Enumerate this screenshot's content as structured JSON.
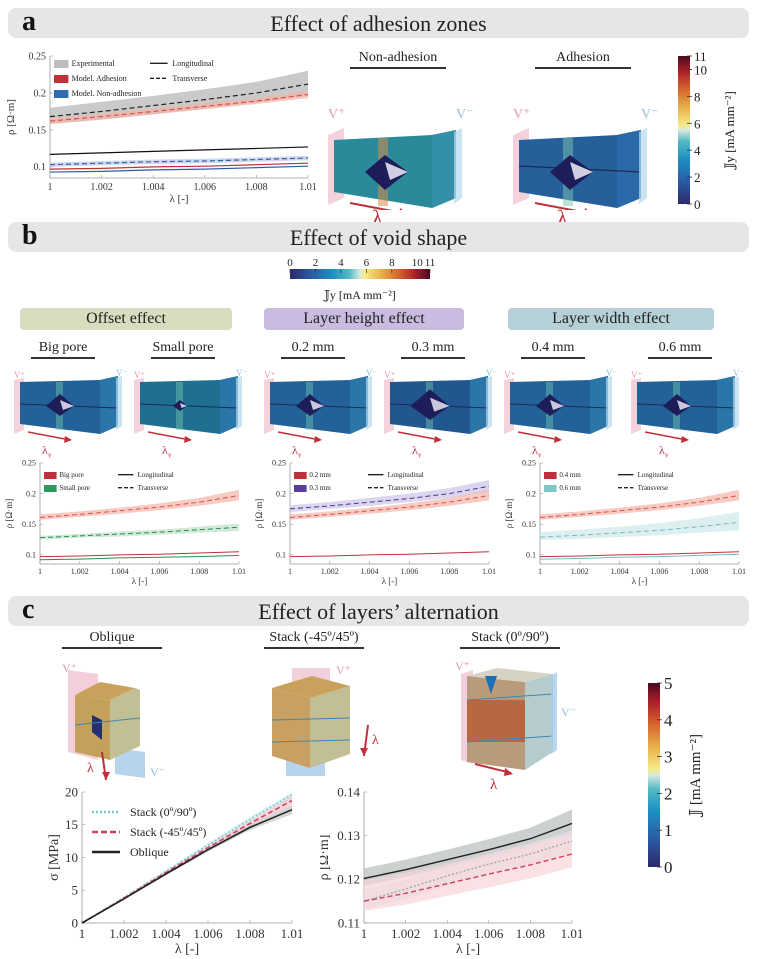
{
  "panels": {
    "a": {
      "letter": "a",
      "title": "Effect of adhesion zones",
      "renders": [
        {
          "label": "Non-adhesion",
          "v_plus": "V⁺",
          "v_minus": "V⁻",
          "arrow": "λ",
          "arrow_sub": "y"
        },
        {
          "label": "Adhesion",
          "v_plus": "V⁺",
          "v_minus": "V⁻",
          "arrow": "λ",
          "arrow_sub": "y"
        }
      ],
      "colorbar": {
        "label": "𝕁y [mA mm⁻²]",
        "ticks": [
          "0",
          "2",
          "4",
          "6",
          "8",
          "10",
          "11"
        ]
      }
    },
    "b": {
      "letter": "b",
      "title": "Effect of void shape",
      "colorbar": {
        "label": "𝕁y [mA mm⁻²]",
        "ticks": [
          "0",
          "2",
          "4",
          "6",
          "8",
          "10",
          "11"
        ]
      },
      "groups": [
        {
          "title": "Offset effect",
          "color": "#d7ddbf",
          "renders": [
            {
              "label": "Big pore"
            },
            {
              "label": "Small pore"
            }
          ]
        },
        {
          "title": "Layer height effect",
          "color": "#c9bce0",
          "renders": [
            {
              "label": "0.2 mm"
            },
            {
              "label": "0.3 mm"
            }
          ]
        },
        {
          "title": "Layer width effect",
          "color": "#b5d0d6",
          "renders": [
            {
              "label": "0.4 mm"
            },
            {
              "label": "0.6 mm"
            }
          ]
        }
      ],
      "v_plus": "V⁺",
      "v_minus": "V⁻",
      "arrow": "λ",
      "arrow_sub": "y"
    },
    "c": {
      "letter": "c",
      "title": "Effect of layers’ alternation",
      "renders": [
        {
          "label": "Oblique"
        },
        {
          "label": "Stack (-45º/45º)"
        },
        {
          "label": "Stack (0º/90º)"
        }
      ],
      "v_plus": "V⁺",
      "v_minus": "V⁻",
      "arrow": "λ",
      "colorbar": {
        "label": "𝕁 [mA mm⁻²]",
        "ticks": [
          "0",
          "1",
          "2",
          "3",
          "4",
          "5"
        ]
      }
    }
  },
  "chart_data": [
    {
      "id": "a-resistivity",
      "type": "line",
      "title": "",
      "xlabel": "λ [-]",
      "ylabel": "ρ [Ω·m]",
      "xlim": [
        1,
        1.01
      ],
      "ylim": [
        0.085,
        0.25
      ],
      "xticks": [
        "1",
        "1.002",
        "1.004",
        "1.006",
        "1.008",
        "1.01"
      ],
      "yticks": [
        "0.1",
        "0.15",
        "0.2",
        "0.25"
      ],
      "x": [
        1,
        1.002,
        1.004,
        1.006,
        1.008,
        1.01
      ],
      "legend": {
        "placement": "top-left",
        "entries": [
          "Experimental",
          "Model. Adhesion",
          "Model. Non-adhesion",
          "Longitudinal",
          "Transverse"
        ]
      },
      "series": [
        {
          "name": "Experimental Transverse",
          "color": "#222222",
          "dash": "dashed",
          "values": [
            0.168,
            0.175,
            0.183,
            0.191,
            0.2,
            0.212
          ],
          "band": [
            [
              0.158,
              0.18
            ],
            [
              0.164,
              0.188
            ],
            [
              0.171,
              0.196
            ],
            [
              0.179,
              0.205
            ],
            [
              0.187,
              0.215
            ],
            [
              0.196,
              0.23
            ]
          ],
          "band_color": "#b3b3b3"
        },
        {
          "name": "Model. Adhesion Transverse",
          "color": "#d9534f",
          "dash": "dashed",
          "values": [
            0.162,
            0.168,
            0.175,
            0.182,
            0.189,
            0.198
          ],
          "band": [
            [
              0.158,
              0.166
            ],
            [
              0.164,
              0.172
            ],
            [
              0.171,
              0.179
            ],
            [
              0.178,
              0.186
            ],
            [
              0.185,
              0.193
            ],
            [
              0.193,
              0.203
            ]
          ],
          "band_color": "#f4b4a8"
        },
        {
          "name": "Experimental Longitudinal",
          "color": "#111111",
          "dash": "solid",
          "values": [
            0.117,
            0.119,
            0.121,
            0.123,
            0.125,
            0.127
          ]
        },
        {
          "name": "Model. Non-adhesion Transverse",
          "color": "#3b5fa8",
          "dash": "dashed",
          "values": [
            0.103,
            0.105,
            0.107,
            0.108,
            0.11,
            0.112
          ],
          "band": [
            [
              0.1,
              0.106
            ],
            [
              0.102,
              0.108
            ],
            [
              0.104,
              0.11
            ],
            [
              0.105,
              0.111
            ],
            [
              0.107,
              0.113
            ],
            [
              0.109,
              0.115
            ]
          ],
          "band_color": "#b9c7e6"
        },
        {
          "name": "Model. Adhesion Longitudinal",
          "color": "#c0303a",
          "dash": "solid",
          "values": [
            0.097,
            0.098,
            0.1,
            0.101,
            0.103,
            0.105
          ]
        },
        {
          "name": "Model. Non-adhesion Longitudinal",
          "color": "#2d5ea8",
          "dash": "solid",
          "values": [
            0.093,
            0.094,
            0.096,
            0.097,
            0.099,
            0.101
          ]
        }
      ]
    },
    {
      "id": "b-offset",
      "type": "line",
      "xlabel": "λ [-]",
      "ylabel": "ρ [Ω·m]",
      "xlim": [
        1,
        1.01
      ],
      "ylim": [
        0.085,
        0.25
      ],
      "xticks": [
        "1",
        "1.002",
        "1.004",
        "1.006",
        "1.008",
        "1.01"
      ],
      "yticks": [
        "0.1",
        "0.15",
        "0.2",
        "0.25"
      ],
      "x": [
        1,
        1.002,
        1.004,
        1.006,
        1.008,
        1.01
      ],
      "legend": {
        "placement": "top-left",
        "entries": [
          "Big pore",
          "Small pore",
          "Longitudinal",
          "Transverse"
        ]
      },
      "series": [
        {
          "name": "Big pore Transverse",
          "color": "#d9534f",
          "dash": "dashed",
          "values": [
            0.161,
            0.166,
            0.172,
            0.178,
            0.186,
            0.197
          ],
          "band": [
            [
              0.157,
              0.166
            ],
            [
              0.162,
              0.171
            ],
            [
              0.167,
              0.177
            ],
            [
              0.173,
              0.184
            ],
            [
              0.18,
              0.193
            ],
            [
              0.189,
              0.206
            ]
          ],
          "band_color": "#f4b4a8"
        },
        {
          "name": "Small pore Transverse",
          "color": "#2e8b57",
          "dash": "dashed",
          "values": [
            0.128,
            0.131,
            0.134,
            0.137,
            0.141,
            0.145
          ],
          "band": [
            [
              0.125,
              0.131
            ],
            [
              0.128,
              0.134
            ],
            [
              0.13,
              0.138
            ],
            [
              0.133,
              0.141
            ],
            [
              0.136,
              0.146
            ],
            [
              0.139,
              0.151
            ]
          ],
          "band_color": "#bfe0c8"
        },
        {
          "name": "Big pore Longitudinal",
          "color": "#c0303a",
          "dash": "solid",
          "values": [
            0.097,
            0.098,
            0.1,
            0.101,
            0.103,
            0.105
          ]
        },
        {
          "name": "Small pore Longitudinal",
          "color": "#2e8b57",
          "dash": "solid",
          "values": [
            0.092,
            0.093,
            0.095,
            0.096,
            0.097,
            0.099
          ]
        }
      ]
    },
    {
      "id": "b-layer-height",
      "type": "line",
      "xlabel": "λ [-]",
      "ylabel": "ρ [Ω·m]",
      "xlim": [
        1,
        1.01
      ],
      "ylim": [
        0.085,
        0.25
      ],
      "xticks": [
        "1",
        "1.002",
        "1.004",
        "1.006",
        "1.008",
        "1.01"
      ],
      "yticks": [
        "0.1",
        "0.15",
        "0.2",
        "0.25"
      ],
      "x": [
        1,
        1.002,
        1.004,
        1.006,
        1.008,
        1.01
      ],
      "legend": {
        "placement": "top-left",
        "entries": [
          "0.2 mm",
          "0.3 mm",
          "Longitudinal",
          "Transverse"
        ]
      },
      "series": [
        {
          "name": "0.3 mm Transverse",
          "color": "#4b3a8c",
          "dash": "dashed",
          "values": [
            0.175,
            0.18,
            0.186,
            0.192,
            0.2,
            0.212
          ],
          "band": [
            [
              0.17,
              0.181
            ],
            [
              0.175,
              0.186
            ],
            [
              0.18,
              0.193
            ],
            [
              0.186,
              0.2
            ],
            [
              0.193,
              0.209
            ],
            [
              0.203,
              0.222
            ]
          ],
          "band_color": "#cdc3ea"
        },
        {
          "name": "0.2 mm Transverse",
          "color": "#d9534f",
          "dash": "dashed",
          "values": [
            0.161,
            0.166,
            0.172,
            0.178,
            0.186,
            0.197
          ],
          "band": [
            [
              0.157,
              0.166
            ],
            [
              0.162,
              0.171
            ],
            [
              0.167,
              0.177
            ],
            [
              0.173,
              0.184
            ],
            [
              0.18,
              0.193
            ],
            [
              0.189,
              0.206
            ]
          ],
          "band_color": "#f4b4a8"
        },
        {
          "name": "0.2 mm Longitudinal",
          "color": "#c0303a",
          "dash": "solid",
          "values": [
            0.097,
            0.098,
            0.1,
            0.101,
            0.103,
            0.105
          ]
        }
      ]
    },
    {
      "id": "b-layer-width",
      "type": "line",
      "xlabel": "λ [-]",
      "ylabel": "ρ [Ω·m]",
      "xlim": [
        1,
        1.01
      ],
      "ylim": [
        0.085,
        0.25
      ],
      "xticks": [
        "1",
        "1.002",
        "1.004",
        "1.006",
        "1.008",
        "1.01"
      ],
      "yticks": [
        "0.1",
        "0.15",
        "0.2",
        "0.25"
      ],
      "x": [
        1,
        1.002,
        1.004,
        1.006,
        1.008,
        1.01
      ],
      "legend": {
        "placement": "top-left",
        "entries": [
          "0.4 mm",
          "0.6 mm",
          "Longitudinal",
          "Transverse"
        ]
      },
      "series": [
        {
          "name": "0.4 mm Transverse",
          "color": "#d9534f",
          "dash": "dashed",
          "values": [
            0.161,
            0.166,
            0.172,
            0.178,
            0.186,
            0.197
          ],
          "band": [
            [
              0.157,
              0.166
            ],
            [
              0.162,
              0.171
            ],
            [
              0.167,
              0.177
            ],
            [
              0.173,
              0.184
            ],
            [
              0.18,
              0.193
            ],
            [
              0.189,
              0.206
            ]
          ],
          "band_color": "#f4b4a8"
        },
        {
          "name": "0.6 mm Transverse",
          "color": "#6fbcc0",
          "dash": "dashed",
          "values": [
            0.129,
            0.132,
            0.136,
            0.14,
            0.146,
            0.153
          ],
          "band": [
            [
              0.124,
              0.137
            ],
            [
              0.126,
              0.141
            ],
            [
              0.129,
              0.146
            ],
            [
              0.132,
              0.152
            ],
            [
              0.136,
              0.16
            ],
            [
              0.14,
              0.17
            ]
          ],
          "band_color": "#cfe9e8"
        },
        {
          "name": "0.4 mm Longitudinal",
          "color": "#c0303a",
          "dash": "solid",
          "values": [
            0.097,
            0.098,
            0.1,
            0.101,
            0.103,
            0.105
          ]
        },
        {
          "name": "0.6 mm Longitudinal",
          "color": "#6fbcc0",
          "dash": "solid",
          "values": [
            0.093,
            0.094,
            0.096,
            0.097,
            0.099,
            0.101
          ]
        }
      ]
    },
    {
      "id": "c-stress",
      "type": "line",
      "xlabel": "λ [-]",
      "ylabel": "σ [MPa]",
      "xlim": [
        1,
        1.01
      ],
      "ylim": [
        0,
        20
      ],
      "xticks": [
        "1",
        "1.002",
        "1.004",
        "1.006",
        "1.008",
        "1.01"
      ],
      "yticks": [
        "0",
        "5",
        "10",
        "15",
        "20"
      ],
      "x": [
        1,
        1.002,
        1.004,
        1.006,
        1.008,
        1.01
      ],
      "legend": {
        "placement": "top-left",
        "entries": [
          "Stack (0º/90º)",
          "Stack (-45º/45º)",
          "Oblique"
        ]
      },
      "series": [
        {
          "name": "Stack (0º/90º)",
          "color": "#7cc8d0",
          "dash": "dotted",
          "values": [
            0,
            3.9,
            7.9,
            11.9,
            15.8,
            19.6
          ],
          "band": [
            [
              0,
              0
            ],
            [
              3.8,
              4.0
            ],
            [
              7.7,
              8.1
            ],
            [
              11.6,
              12.2
            ],
            [
              15.4,
              16.2
            ],
            [
              19.0,
              20.0
            ]
          ],
          "band_color": "#d3ecee"
        },
        {
          "name": "Stack (-45º/45º)",
          "color": "#d0405f",
          "dash": "dashed",
          "values": [
            0,
            3.8,
            7.7,
            11.5,
            15.2,
            18.7
          ],
          "band": [
            [
              0,
              0
            ],
            [
              3.7,
              3.9
            ],
            [
              7.5,
              7.9
            ],
            [
              11.2,
              11.8
            ],
            [
              14.8,
              15.6
            ],
            [
              18.0,
              19.4
            ]
          ],
          "band_color": "#f6c8cf"
        },
        {
          "name": "Oblique",
          "color": "#222222",
          "dash": "solid",
          "values": [
            0,
            3.7,
            7.5,
            11.2,
            14.6,
            17.3
          ],
          "band": [
            [
              0,
              0
            ],
            [
              3.6,
              3.8
            ],
            [
              7.3,
              7.7
            ],
            [
              10.9,
              11.5
            ],
            [
              14.2,
              15.0
            ],
            [
              16.6,
              18.0
            ]
          ],
          "band_color": "#c4c4c4"
        }
      ]
    },
    {
      "id": "c-resistivity",
      "type": "line",
      "xlabel": "λ [-]",
      "ylabel": "ρ [Ω·m]",
      "xlim": [
        1,
        1.01
      ],
      "ylim": [
        0.11,
        0.14
      ],
      "xticks": [
        "1",
        "1.002",
        "1.004",
        "1.006",
        "1.008",
        "1.01"
      ],
      "yticks": [
        "0.11",
        "0.12",
        "0.13",
        "0.14"
      ],
      "x": [
        1,
        1.002,
        1.004,
        1.006,
        1.008,
        1.01
      ],
      "series": [
        {
          "name": "Oblique",
          "color": "#222222",
          "dash": "solid",
          "values": [
            0.1202,
            0.1222,
            0.1245,
            0.1268,
            0.1293,
            0.1328
          ],
          "band": [
            [
              0.1185,
              0.1225
            ],
            [
              0.1205,
              0.1245
            ],
            [
              0.1228,
              0.1268
            ],
            [
              0.125,
              0.1292
            ],
            [
              0.1274,
              0.1318
            ],
            [
              0.1305,
              0.136
            ]
          ],
          "band_color": "#b8bcbc"
        },
        {
          "name": "Stack (0º/90º)",
          "color": "#a0a8aa",
          "dash": "dotted",
          "values": [
            0.115,
            0.1178,
            0.1208,
            0.1235,
            0.1258,
            0.1288
          ],
          "band": [
            [
              0.113,
              0.1175
            ],
            [
              0.1155,
              0.12
            ],
            [
              0.1185,
              0.123
            ],
            [
              0.121,
              0.1258
            ],
            [
              0.1232,
              0.1282
            ],
            [
              0.1262,
              0.1312
            ]
          ],
          "band_color": "#e3e6e6"
        },
        {
          "name": "Stack (-45º/45º)",
          "color": "#d0405f",
          "dash": "dashed",
          "values": [
            0.115,
            0.1168,
            0.119,
            0.1212,
            0.1233,
            0.1258
          ],
          "band": [
            [
              0.1128,
              0.1198
            ],
            [
              0.1142,
              0.1215
            ],
            [
              0.1162,
              0.1235
            ],
            [
              0.1182,
              0.1258
            ],
            [
              0.1202,
              0.128
            ],
            [
              0.1228,
              0.1305
            ]
          ],
          "band_color": "#f6d4d8"
        }
      ]
    }
  ]
}
